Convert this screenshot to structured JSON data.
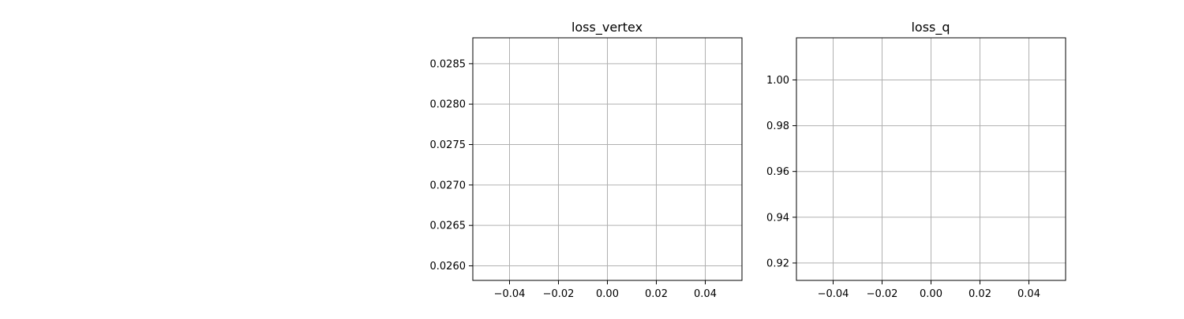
{
  "chart_data": [
    {
      "type": "line",
      "title": "loss_vertex",
      "xlabel": "",
      "ylabel": "",
      "xlim": [
        -0.055,
        0.055
      ],
      "ylim": [
        0.02582,
        0.02882
      ],
      "xticks": [
        -0.04,
        -0.02,
        0.0,
        0.02,
        0.04
      ],
      "xtick_labels": [
        "−0.04",
        "−0.02",
        "0.00",
        "0.02",
        "0.04"
      ],
      "yticks": [
        0.026,
        0.0265,
        0.027,
        0.0275,
        0.028,
        0.0285
      ],
      "ytick_labels": [
        "0.0260",
        "0.0265",
        "0.0270",
        "0.0275",
        "0.0280",
        "0.0285"
      ],
      "grid": true,
      "series": []
    },
    {
      "type": "line",
      "title": "loss_q",
      "xlabel": "",
      "ylabel": "",
      "xlim": [
        -0.055,
        0.055
      ],
      "ylim": [
        0.9124,
        1.0184
      ],
      "xticks": [
        -0.04,
        -0.02,
        0.0,
        0.02,
        0.04
      ],
      "xtick_labels": [
        "−0.04",
        "−0.02",
        "0.00",
        "0.02",
        "0.04"
      ],
      "yticks": [
        0.92,
        0.94,
        0.96,
        0.98,
        1.0
      ],
      "ytick_labels": [
        "0.92",
        "0.94",
        "0.96",
        "0.98",
        "1.00"
      ],
      "grid": true,
      "series": []
    }
  ],
  "colors": {
    "grid": "#b0b0b0",
    "spine": "#000000",
    "background": "#ffffff"
  }
}
